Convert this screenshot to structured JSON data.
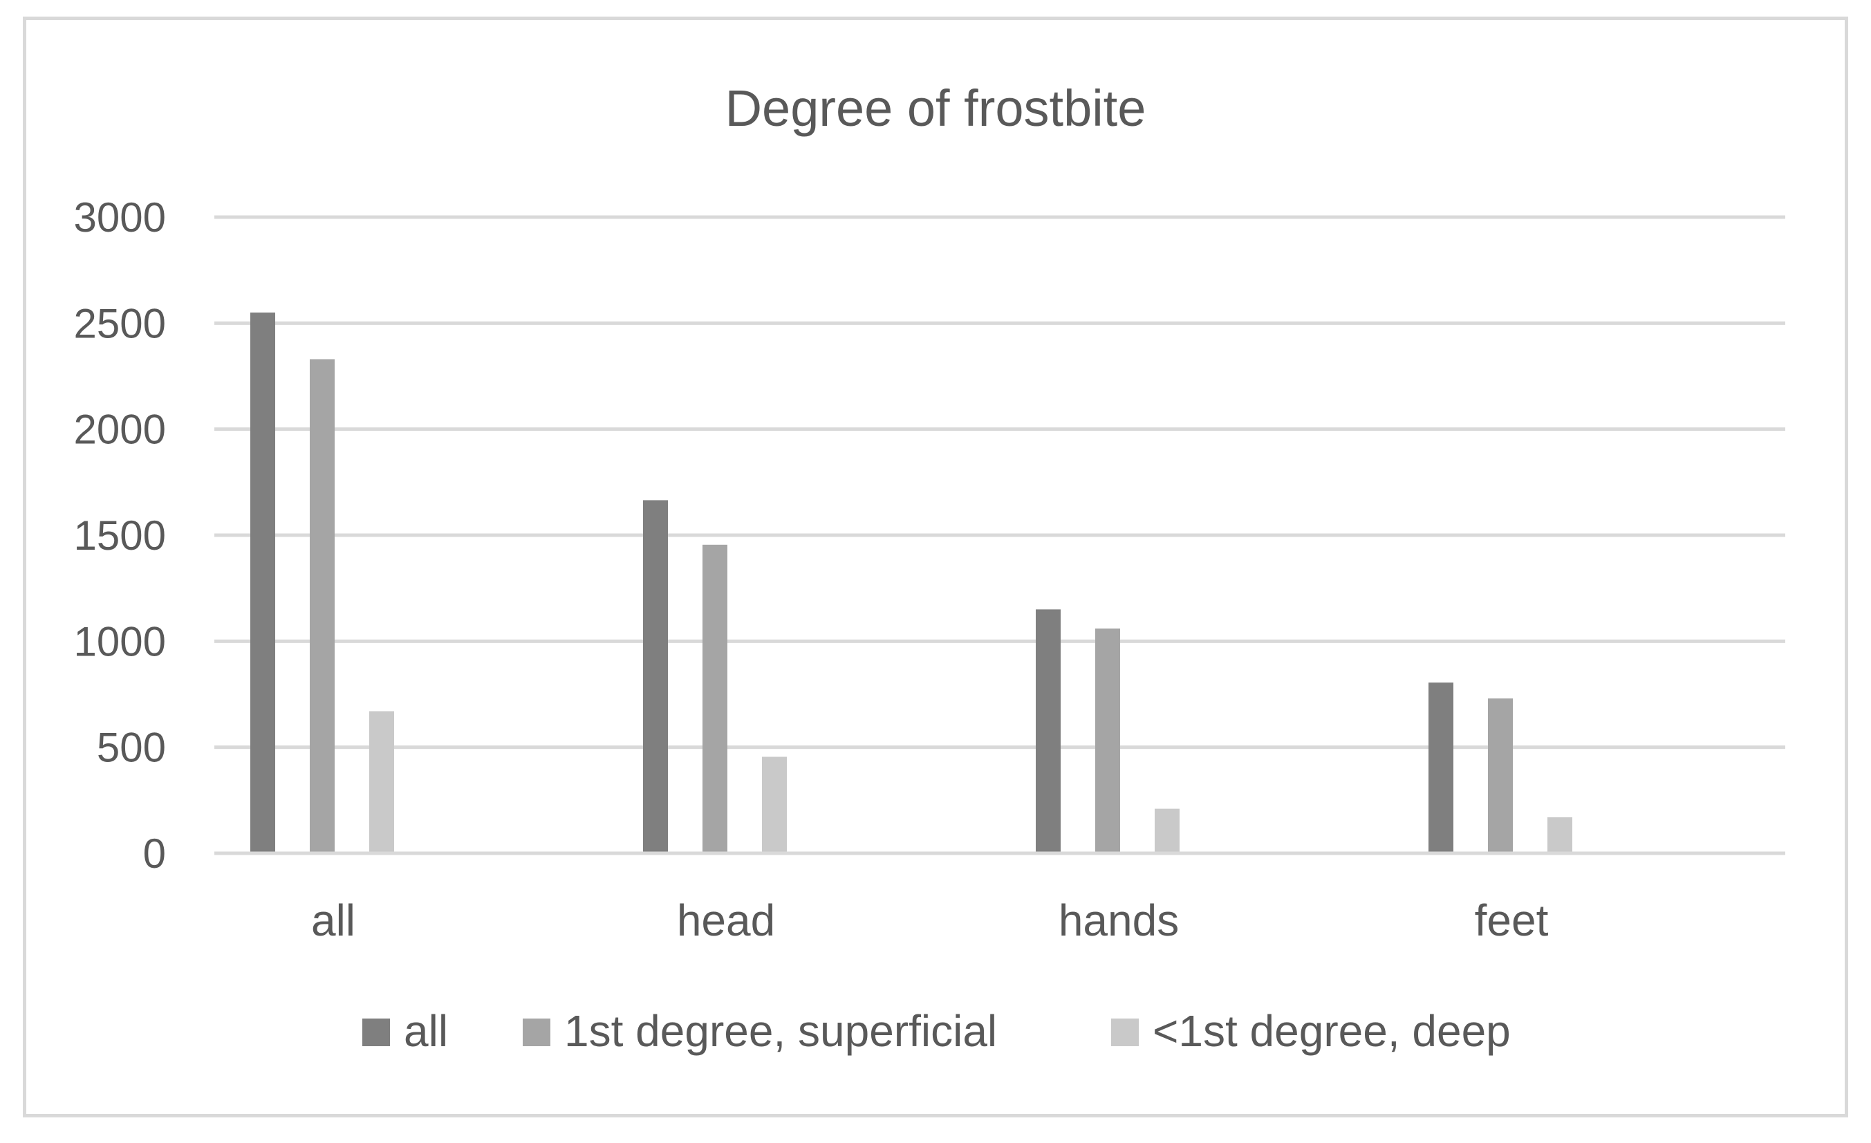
{
  "chart_data": {
    "type": "bar",
    "title": "Degree of frostbite",
    "xlabel": "",
    "ylabel": "",
    "categories": [
      "all",
      "head",
      "hands",
      "feet"
    ],
    "series": [
      {
        "name": "all",
        "values": [
          2550,
          1665,
          1150,
          805
        ],
        "color": "#7f7f7f"
      },
      {
        "name": "1st degree, superficial",
        "values": [
          2330,
          1455,
          1060,
          730
        ],
        "color": "#a5a5a5"
      },
      {
        "name": "<1st degree, deep",
        "values": [
          670,
          455,
          210,
          170
        ],
        "color": "#c9c9c9"
      }
    ],
    "ylim": [
      0,
      3000
    ],
    "yticks": [
      0,
      500,
      1000,
      1500,
      2000,
      2500,
      3000
    ],
    "grid": true,
    "legend_position": "bottom",
    "colors": {
      "gridline": "#d9d9d9",
      "text": "#595959",
      "border": "#d9d9d9"
    }
  }
}
